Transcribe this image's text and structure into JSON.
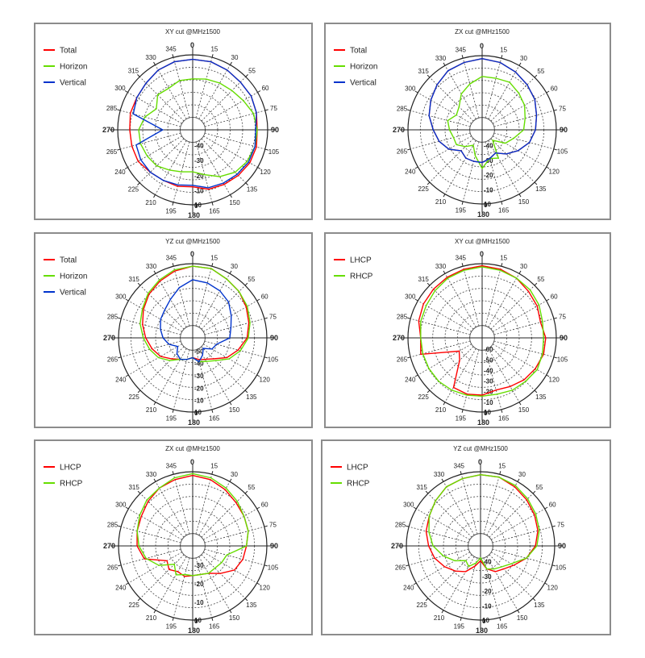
{
  "chart_data": [
    {
      "type": "polar-line",
      "title": "XY cut @MHz1500",
      "radial_ticks": [
        "0",
        "-10",
        "-20",
        "-30",
        "-40"
      ],
      "rlim": [
        -50,
        0
      ],
      "angle_labels": [
        "0",
        "15",
        "30",
        "55",
        "60",
        "75",
        "90",
        "105",
        "120",
        "135",
        "150",
        "165",
        "180",
        "195",
        "210",
        "225",
        "240",
        "265",
        "270",
        "285",
        "300",
        "315",
        "330",
        "345"
      ],
      "grid": true,
      "legend_position": "top-left",
      "series": [
        {
          "name": "Total",
          "color": "#ff0000",
          "values": [
            -3,
            -3,
            -4,
            -5,
            -5,
            -6,
            -7,
            -6,
            -6,
            -7,
            -8,
            -9,
            -12,
            -11,
            -11,
            -10,
            -8,
            -8,
            -8,
            -7,
            -7,
            -6,
            -4,
            -3
          ]
        },
        {
          "name": "Horizon",
          "color": "#66dd00",
          "values": [
            -16,
            -15,
            -14,
            -13,
            -11,
            -8,
            -7,
            -7,
            -8,
            -10,
            -14,
            -19,
            -22,
            -21,
            -19,
            -16,
            -15,
            -14,
            -14,
            -17,
            -22,
            -17,
            -18,
            -16
          ]
        },
        {
          "name": "Vertical",
          "color": "#0033cc",
          "values": [
            -3,
            -3,
            -4,
            -5,
            -5,
            -6,
            -8,
            -7,
            -7,
            -8,
            -9,
            -10,
            -13,
            -12,
            -11,
            -10,
            -10,
            -11,
            -30,
            -9,
            -7,
            -6,
            -4,
            -3
          ]
        }
      ]
    },
    {
      "type": "polar-line",
      "title": "ZX cut @MHz1500",
      "radial_ticks": [
        "0",
        "-10",
        "-20",
        "-30",
        "-40"
      ],
      "rlim": [
        -50,
        0
      ],
      "angle_labels": [
        "0",
        "15",
        "30",
        "55",
        "60",
        "75",
        "90",
        "105",
        "120",
        "135",
        "150",
        "165",
        "180",
        "195",
        "210",
        "225",
        "240",
        "265",
        "270",
        "285",
        "300",
        "315",
        "330",
        "345"
      ],
      "grid": true,
      "legend_position": "top-left",
      "series": [
        {
          "name": "Total",
          "color": "#ff0000",
          "values": [
            -2,
            -3,
            -5,
            -7,
            -9,
            -12,
            -14,
            -17,
            -22,
            -27,
            -32,
            -30,
            -28,
            -28,
            -28,
            -30,
            -24,
            -20,
            -17,
            -13,
            -10,
            -7,
            -4,
            -3
          ]
        },
        {
          "name": "Horizon",
          "color": "#66dd00",
          "values": [
            -14,
            -14,
            -13,
            -15,
            -17,
            -20,
            -22,
            -28,
            -32,
            -40,
            -28,
            -30,
            -24,
            -32,
            -38,
            -34,
            -30,
            -30,
            -28,
            -26,
            -30,
            -28,
            -22,
            -18
          ]
        },
        {
          "name": "Vertical",
          "color": "#0033cc",
          "values": [
            -2,
            -3,
            -5,
            -7,
            -9,
            -12,
            -14,
            -17,
            -22,
            -27,
            -32,
            -30,
            -28,
            -28,
            -28,
            -30,
            -24,
            -20,
            -17,
            -13,
            -10,
            -7,
            -4,
            -3
          ]
        }
      ]
    },
    {
      "type": "polar-line",
      "title": "YZ cut @MHz1500",
      "radial_ticks": [
        "0",
        "-10",
        "-20",
        "-30",
        "-40",
        "-50"
      ],
      "rlim": [
        -60,
        0
      ],
      "angle_labels": [
        "0",
        "15",
        "30",
        "55",
        "60",
        "75",
        "90",
        "105",
        "120",
        "135",
        "150",
        "165",
        "180",
        "195",
        "210",
        "225",
        "240",
        "265",
        "270",
        "285",
        "300",
        "315",
        "330",
        "345"
      ],
      "grid": true,
      "legend_position": "top-left",
      "series": [
        {
          "name": "Total",
          "color": "#ff0000",
          "values": [
            -2,
            -2,
            -5,
            -7,
            -10,
            -13,
            -16,
            -22,
            -28,
            -36,
            -40,
            -42,
            -44,
            -42,
            -40,
            -36,
            -30,
            -26,
            -22,
            -18,
            -14,
            -10,
            -7,
            -4
          ]
        },
        {
          "name": "Horizon",
          "color": "#66dd00",
          "values": [
            -2,
            -2,
            -5,
            -7,
            -9,
            -12,
            -15,
            -20,
            -26,
            -34,
            -38,
            -40,
            -44,
            -42,
            -40,
            -34,
            -28,
            -24,
            -20,
            -16,
            -13,
            -9,
            -6,
            -3
          ]
        },
        {
          "name": "Vertical",
          "color": "#0033cc",
          "values": [
            -13,
            -14,
            -16,
            -19,
            -24,
            -28,
            -30,
            -40,
            -42,
            -48,
            -44,
            -40,
            -44,
            -42,
            -40,
            -42,
            -46,
            -40,
            -36,
            -33,
            -30,
            -28,
            -24,
            -18
          ]
        }
      ]
    },
    {
      "type": "polar-line",
      "title": "XY cut @MHz1500",
      "radial_ticks": [
        "0",
        "-10",
        "-20",
        "-30",
        "-40",
        "-50",
        "-60"
      ],
      "rlim": [
        -70,
        0
      ],
      "angle_labels": [
        "0",
        "15",
        "30",
        "55",
        "60",
        "75",
        "90",
        "105",
        "120",
        "135",
        "150",
        "165",
        "180",
        "195",
        "210",
        "225",
        "240",
        "265",
        "270",
        "285",
        "300",
        "315",
        "330",
        "345"
      ],
      "grid": true,
      "legend_position": "top-left",
      "series": [
        {
          "name": "LHCP",
          "color": "#ff0000",
          "values": [
            -2,
            -3,
            -5,
            -8,
            -10,
            -13,
            -10,
            -10,
            -12,
            -14,
            -17,
            -19,
            -16,
            -15,
            -16,
            -40,
            -45,
            -10,
            -12,
            -8,
            -6,
            -5,
            -4,
            -3
          ]
        },
        {
          "name": "RHCP",
          "color": "#66dd00",
          "values": [
            -3,
            -4,
            -5,
            -6,
            -8,
            -11,
            -12,
            -11,
            -10,
            -12,
            -13,
            -15,
            -15,
            -14,
            -13,
            -12,
            -12,
            -12,
            -12,
            -10,
            -9,
            -7,
            -5,
            -4
          ]
        }
      ]
    },
    {
      "type": "polar-line",
      "title": "ZX cut @MHz1500",
      "radial_ticks": [
        "0",
        "-10",
        "-20",
        "-30"
      ],
      "rlim": [
        -40,
        0
      ],
      "angle_labels": [
        "0",
        "15",
        "30",
        "55",
        "60",
        "75",
        "90",
        "105",
        "120",
        "135",
        "150",
        "165",
        "180",
        "195",
        "210",
        "225",
        "240",
        "265",
        "270",
        "285",
        "300",
        "315",
        "330",
        "345"
      ],
      "grid": true,
      "legend_position": "top-left",
      "series": [
        {
          "name": "LHCP",
          "color": "#ff0000",
          "values": [
            -2,
            -3,
            -5,
            -7,
            -8,
            -9,
            -11,
            -12,
            -14,
            -19,
            -23,
            -24,
            -24,
            -23,
            -24,
            -22,
            -24,
            -13,
            -10,
            -9,
            -8,
            -6,
            -4,
            -3
          ]
        },
        {
          "name": "RHCP",
          "color": "#66dd00",
          "values": [
            -1,
            -2,
            -4,
            -6,
            -8,
            -9,
            -11,
            -21,
            -22,
            -23,
            -23,
            -24,
            -24,
            -24,
            -22,
            -26,
            -19,
            -14,
            -11,
            -9,
            -7,
            -5,
            -4,
            -2
          ]
        }
      ]
    },
    {
      "type": "polar-line",
      "title": "YZ cut @MHz1500",
      "radial_ticks": [
        "0",
        "-10",
        "-20",
        "-30",
        "-40"
      ],
      "rlim": [
        -50,
        0
      ],
      "angle_labels": [
        "0",
        "15",
        "30",
        "55",
        "60",
        "75",
        "90",
        "105",
        "120",
        "135",
        "150",
        "165",
        "180",
        "195",
        "210",
        "225",
        "240",
        "265",
        "270",
        "285",
        "300",
        "315",
        "330",
        "345"
      ],
      "grid": true,
      "legend_position": "top-left",
      "series": [
        {
          "name": "LHCP",
          "color": "#ff0000",
          "values": [
            -2,
            -2,
            -4,
            -6,
            -8,
            -10,
            -13,
            -18,
            -24,
            -28,
            -30,
            -34,
            -40,
            -36,
            -30,
            -26,
            -22,
            -18,
            -15,
            -12,
            -10,
            -7,
            -4,
            -3
          ]
        },
        {
          "name": "RHCP",
          "color": "#66dd00",
          "values": [
            -2,
            -2,
            -3,
            -5,
            -7,
            -9,
            -12,
            -18,
            -26,
            -30,
            -32,
            -34,
            -42,
            -38,
            -34,
            -36,
            -30,
            -24,
            -18,
            -14,
            -10,
            -7,
            -4,
            -3
          ]
        }
      ]
    }
  ]
}
